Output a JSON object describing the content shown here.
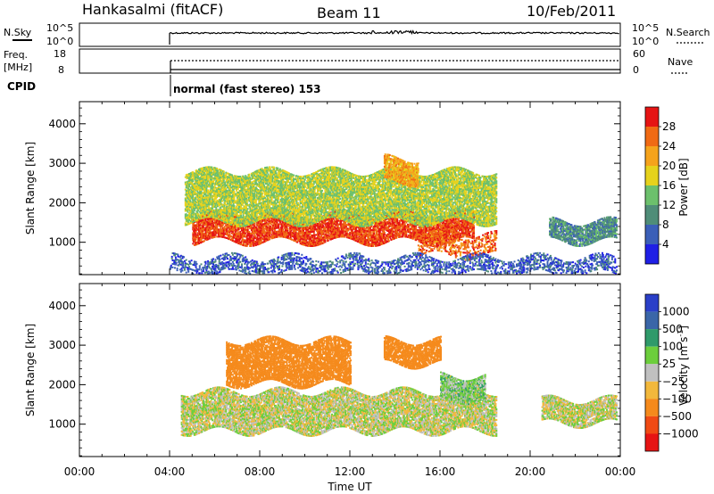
{
  "header": {
    "station": "Hankasalmi (fitACF)",
    "beam": "Beam 11",
    "date": "10/Feb/2011"
  },
  "strip_nsky": {
    "left_label": "N.Sky",
    "left_ticks": [
      "10^5",
      "10^0"
    ],
    "right_ticks": [
      "10^5",
      "10^0"
    ],
    "right_label": "N.Search"
  },
  "strip_freq": {
    "left_label_1": "Freq.",
    "left_label_2": "[MHz]",
    "left_ticks": [
      "18",
      "8"
    ],
    "right_ticks": [
      "60",
      "0"
    ],
    "right_label": "Nave"
  },
  "cpid": {
    "label": "CPID",
    "mode": "normal (fast stereo) 153"
  },
  "x_axis": {
    "ticks": [
      "00:00",
      "04:00",
      "08:00",
      "12:00",
      "16:00",
      "20:00",
      "00:00"
    ],
    "label": "Time UT"
  },
  "y_axis": {
    "label": "Slant Range [km]",
    "ticks": [
      "1000",
      "2000",
      "3000",
      "4000"
    ]
  },
  "power_bar": {
    "label": "Power [dB]",
    "ticks": [
      "4",
      "8",
      "12",
      "16",
      "20",
      "24",
      "28"
    ],
    "colors": [
      "#1f1fe6",
      "#3b5fb8",
      "#4f8d78",
      "#6cc06c",
      "#e6d21c",
      "#f5a31c",
      "#f06a14",
      "#e61414"
    ]
  },
  "velocity_bar": {
    "label": "Velocity [m s",
    "label_sup": "-1",
    "label_end": "]",
    "ticks": [
      "1000",
      "500",
      "100",
      "25",
      "−25",
      "−100",
      "−500",
      "−1000"
    ],
    "colors": [
      "#2a3fc8",
      "#3a66a8",
      "#2f9a6a",
      "#6cce3c",
      "#c0c0c0",
      "#f2b83c",
      "#f58a1c",
      "#f04a14",
      "#e61414"
    ]
  },
  "chart_data": [
    {
      "type": "heatmap",
      "title": "Power",
      "xlabel": "Time UT",
      "ylabel": "Slant Range [km]",
      "xlim": [
        "00:00",
        "24:00"
      ],
      "ylim": [
        180,
        4560
      ],
      "colorbar_label": "Power [dB]",
      "colorbar_range": [
        0,
        32
      ],
      "features": [
        {
          "t_start": "05:00",
          "t_end": "17:30",
          "range_km": [
            1000,
            1700
          ],
          "power_db": 28
        },
        {
          "t_start": "04:40",
          "t_end": "18:30",
          "range_km": [
            1500,
            2800
          ],
          "power_db": 16
        },
        {
          "t_start": "13:30",
          "t_end": "15:00",
          "range_km": [
            2500,
            3100
          ],
          "power_db": 22
        },
        {
          "t_start": "15:00",
          "t_end": "18:30",
          "range_km": [
            650,
            1150
          ],
          "power_db": 26
        },
        {
          "t_start": "20:50",
          "t_end": "23:50",
          "range_km": [
            1000,
            1500
          ],
          "power_db": 10
        },
        {
          "t_start": "04:00",
          "t_end": "23:50",
          "range_km": [
            180,
            600
          ],
          "power_db": 6
        }
      ]
    },
    {
      "type": "heatmap",
      "title": "Velocity",
      "xlabel": "Time UT",
      "ylabel": "Slant Range [km]",
      "xlim": [
        "00:00",
        "24:00"
      ],
      "ylim": [
        180,
        4560
      ],
      "colorbar_label": "Velocity [m s-1]",
      "colorbar_ticks": [
        1000,
        500,
        100,
        25,
        -25,
        -100,
        -500,
        -1000
      ],
      "features": [
        {
          "t_start": "04:30",
          "t_end": "18:30",
          "range_km": [
            800,
            1800
          ],
          "velocity": 0
        },
        {
          "t_start": "06:30",
          "t_end": "12:00",
          "range_km": [
            2000,
            3100
          ],
          "velocity": -200
        },
        {
          "t_start": "13:30",
          "t_end": "16:00",
          "range_km": [
            2500,
            3100
          ],
          "velocity": -300
        },
        {
          "t_start": "16:00",
          "t_end": "18:00",
          "range_km": [
            1600,
            2200
          ],
          "velocity": 50
        },
        {
          "t_start": "20:30",
          "t_end": "23:50",
          "range_km": [
            1000,
            1600
          ],
          "velocity": 0
        }
      ]
    }
  ]
}
